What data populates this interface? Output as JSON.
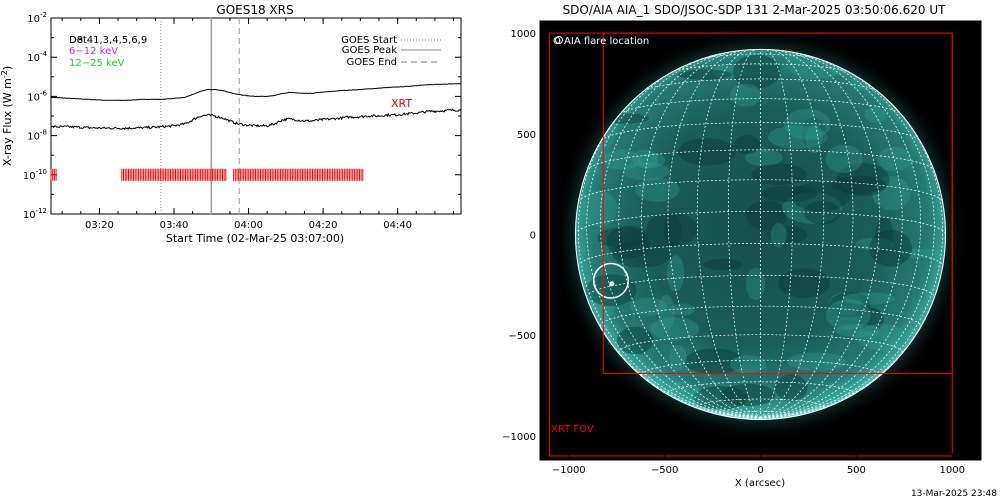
{
  "colors": {
    "background": "#ffffff",
    "axes": "#000000",
    "xrt_red": "#ff0000",
    "band_magenta": "#e020e0",
    "band_green": "#20d020",
    "sun_teal": "#1f8c84",
    "sun_dark": "#0e3f3b",
    "sun_limb": "#69d8cc",
    "grid_white": "#ffffff",
    "peak_line": "#a0a0a0"
  },
  "chart_data": [
    {
      "type": "line",
      "title": "GOES18 XRS",
      "xlabel": "Start Time (02-Mar-25 03:07:00)",
      "ylabel": "X-ray Flux (W m",
      "ylabel_sup": "-2",
      "ylabel_close": ")",
      "yscale": "log",
      "ylim": [
        1e-12,
        0.01
      ],
      "xlim_minutes_since_start": [
        0,
        110
      ],
      "xticks": [
        {
          "minute": 13,
          "label": "03:20"
        },
        {
          "minute": 33,
          "label": "03:40"
        },
        {
          "minute": 53,
          "label": "04:00"
        },
        {
          "minute": 73,
          "label": "04:20"
        },
        {
          "minute": 93,
          "label": "04:40"
        }
      ],
      "yticks": [
        {
          "exp": -2,
          "base": "10",
          "sup": "-2"
        },
        {
          "exp": -4,
          "base": "10",
          "sup": "-4"
        },
        {
          "exp": -6,
          "base": "10",
          "sup": "-6"
        },
        {
          "exp": -8,
          "base": "10",
          "sup": "-8"
        },
        {
          "exp": -10,
          "base": "10",
          "sup": "-10"
        },
        {
          "exp": -12,
          "base": "10",
          "sup": "-12"
        }
      ],
      "legend_top_left": {
        "channels": "Det41,3,4,5,6,9",
        "channels_overprint": "D8",
        "band1": "6−12 keV",
        "band2": "12−25 keV"
      },
      "legend_top_right": [
        {
          "label": "GOES Start",
          "style": "dotted"
        },
        {
          "label": "GOES Peak",
          "style": "solid"
        },
        {
          "label": "GOES End",
          "style": "dashed"
        }
      ],
      "markers_minutes": {
        "start": 29.5,
        "peak": 43,
        "end": 50.5
      },
      "xrt_label": "XRT",
      "series": [
        {
          "x": [
            0,
            5,
            10,
            15,
            20,
            25,
            30,
            33,
            36,
            38,
            40,
            42,
            44,
            46,
            48,
            50,
            52,
            55,
            58,
            60,
            62,
            64,
            66,
            68,
            70,
            72,
            75,
            78,
            80,
            82,
            85,
            88,
            90,
            92,
            95,
            98,
            100,
            102,
            104,
            106,
            108,
            110
          ],
          "log_flux": [
            -6.05,
            -6.1,
            -6.15,
            -6.2,
            -6.2,
            -6.15,
            -6.15,
            -6.1,
            -6.05,
            -5.9,
            -5.75,
            -5.65,
            -5.65,
            -5.7,
            -5.8,
            -5.9,
            -5.95,
            -6.0,
            -6.0,
            -5.95,
            -5.85,
            -5.8,
            -5.82,
            -5.85,
            -5.85,
            -5.8,
            -5.75,
            -5.7,
            -5.68,
            -5.66,
            -5.62,
            -5.58,
            -5.55,
            -5.53,
            -5.5,
            -5.45,
            -5.42,
            -5.4,
            -5.38,
            -5.37,
            -5.36,
            -5.35
          ]
        },
        {
          "x": [
            0,
            5,
            10,
            15,
            20,
            25,
            30,
            33,
            36,
            38,
            40,
            42,
            44,
            46,
            48,
            50,
            52,
            55,
            58,
            60,
            62,
            64,
            66,
            68,
            70,
            72,
            75,
            78,
            80,
            82,
            85,
            88,
            90,
            92,
            95,
            98,
            100,
            102,
            104,
            106,
            108,
            110
          ],
          "log_flux": [
            -7.55,
            -7.55,
            -7.6,
            -7.62,
            -7.62,
            -7.6,
            -7.55,
            -7.5,
            -7.4,
            -7.2,
            -7.0,
            -6.95,
            -7.0,
            -7.1,
            -7.25,
            -7.4,
            -7.45,
            -7.5,
            -7.5,
            -7.4,
            -7.2,
            -7.15,
            -7.2,
            -7.25,
            -7.25,
            -7.2,
            -7.15,
            -7.1,
            -7.05,
            -7.05,
            -7.0,
            -7.0,
            -6.95,
            -6.95,
            -6.9,
            -6.85,
            -6.8,
            -6.75,
            -6.75,
            -6.72,
            -6.7,
            -6.7
          ]
        }
      ],
      "xrt_intervals_minutes": [
        [
          0,
          1.5
        ],
        [
          19,
          47
        ],
        [
          49,
          84
        ]
      ]
    },
    {
      "type": "scatter",
      "title": "SDO/AIA AIA_1 SDO/JSOC-SDP 131  2-Mar-2025 03:50:06.620 UT",
      "xlabel": "X (arcsec)",
      "ylabel": "",
      "xlim": [
        -1150,
        1150
      ],
      "ylim": [
        -1120,
        1060
      ],
      "xticks": [
        -1000,
        -500,
        0,
        500,
        1000
      ],
      "yticks": [
        1000,
        500,
        0,
        -500,
        -1000
      ],
      "xtick_labels": [
        "−1000",
        "−500",
        "0",
        "500",
        "1000"
      ],
      "ytick_labels": [
        "1000",
        "500",
        "0",
        "−500",
        "−1000"
      ],
      "solar_radius_arcsec": 965,
      "flare_location_arcsec": {
        "x": -780,
        "y": -230
      },
      "flare_circle_radius_arcsec": 90,
      "legend": "O AIA flare location",
      "xrt_fov_label": "XRT FOV",
      "xrt_fov_arcsec": {
        "x0": -820,
        "y0": -690,
        "x1": 1000,
        "y1": 1000
      },
      "outer_red_box_arcsec": {
        "x0": -1100,
        "y0": -1100,
        "x1": 1000,
        "y1": 1000
      }
    }
  ],
  "footer_timestamp": "13-Mar-2025 23:48"
}
